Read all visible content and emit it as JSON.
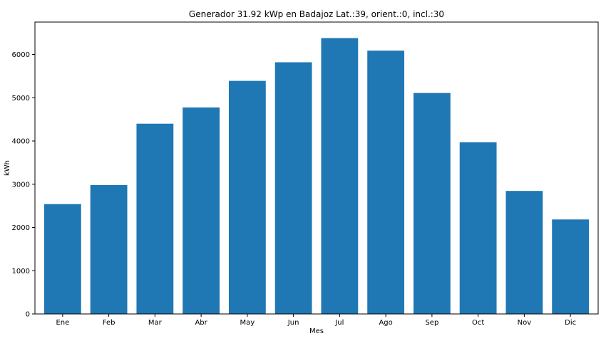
{
  "chart_data": {
    "type": "bar",
    "title": "Generador 31.92 kWp en Badajoz Lat.:39, orient.:0, incl.:30",
    "xlabel": "Mes",
    "ylabel": "kWh",
    "categories": [
      "Ene",
      "Feb",
      "Mar",
      "Abr",
      "May",
      "Jun",
      "Jul",
      "Ago",
      "Sep",
      "Oct",
      "Nov",
      "Dic"
    ],
    "values": [
      2540,
      2980,
      4400,
      4775,
      5390,
      5820,
      6380,
      6090,
      5110,
      3970,
      2845,
      2185
    ],
    "ylim": [
      0,
      6750
    ],
    "yticks": [
      0,
      1000,
      2000,
      3000,
      4000,
      5000,
      6000
    ],
    "grid": false,
    "bar_color": "#1f77b4"
  }
}
